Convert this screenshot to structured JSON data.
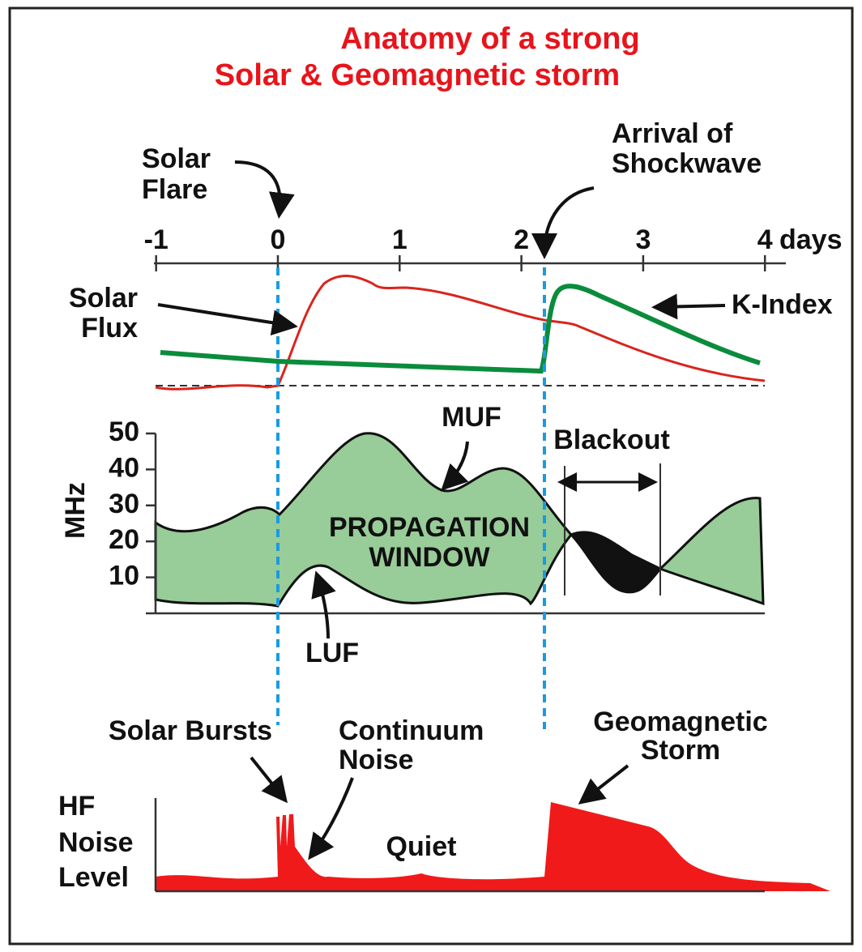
{
  "title": [
    "Anatomy of a strong",
    "Solar & Geomagnetic storm"
  ],
  "time_axis": {
    "ticks": [
      -1,
      0,
      1,
      2,
      3,
      4
    ],
    "unit": "days"
  },
  "frequency_axis": {
    "label": "MHz",
    "ticks": [
      50,
      40,
      30,
      20,
      10
    ]
  },
  "labels": {
    "solar_flare": [
      "Solar",
      "Flare"
    ],
    "shockwave": [
      "Arrival of",
      "Shockwave"
    ],
    "solar_flux": [
      "Solar",
      "Flux"
    ],
    "k_index": "K-Index",
    "muf": "MUF",
    "window": [
      "PROPAGATION",
      "WINDOW"
    ],
    "blackout": "Blackout",
    "luf": "LUF",
    "solar_bursts": "Solar Bursts",
    "continuum": [
      "Continuum",
      "Noise"
    ],
    "geomagnetic": [
      "Geomagnetic",
      "Storm"
    ],
    "hf_noise": [
      "HF",
      "Noise",
      "Level"
    ],
    "quiet": "Quiet"
  }
}
